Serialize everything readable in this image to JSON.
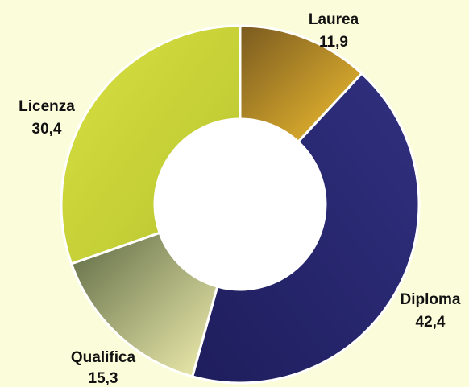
{
  "chart_data": {
    "type": "pie",
    "donut": true,
    "legend": "none",
    "slices": [
      {
        "label": "Laurea",
        "value_label": "11,9",
        "value": 11.9,
        "color_light": "#f2c030",
        "color_dark": "#7a5a20"
      },
      {
        "label": "Diploma",
        "value_label": "42,4",
        "value": 42.4,
        "color_light": "#303080",
        "color_dark": "#1e1d5c"
      },
      {
        "label": "Qualifica",
        "value_label": "15,3",
        "value": 15.3,
        "color_light": "#f2f0b0",
        "color_dark": "#5e6a44"
      },
      {
        "label": "Licenza",
        "value_label": "30,4",
        "value": 30.4,
        "color_light": "#d8e040",
        "color_dark": "#b8c430"
      }
    ]
  }
}
